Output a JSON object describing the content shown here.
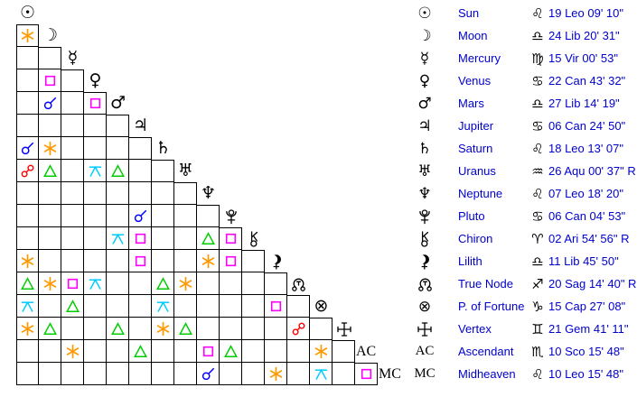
{
  "page": {
    "description": "Astrological aspect grid (aspectarian) with planet position table"
  },
  "colors": {
    "background": "#ffffff",
    "grid_line": "#000000",
    "glyph": "#000000",
    "text_blue": "#0000cc"
  },
  "aspect_types": {
    "conjunction": {
      "label": "conjunction",
      "color": "#0000ff"
    },
    "opposition": {
      "label": "opposition",
      "color": "#ff0000"
    },
    "trine": {
      "label": "trine",
      "color": "#00cc00"
    },
    "square": {
      "label": "square",
      "color": "#ff00ff"
    },
    "sextile": {
      "label": "sextile",
      "color": "#ff9900"
    },
    "quincunx": {
      "label": "quincunx",
      "color": "#00ccff"
    }
  },
  "planets": [
    {
      "name": "Sun",
      "icon": "sun-icon",
      "sign_icon": "leo-icon",
      "position": "19 Leo 09' 10\""
    },
    {
      "name": "Moon",
      "icon": "moon-icon",
      "sign_icon": "libra-icon",
      "position": "24 Lib 20' 31\""
    },
    {
      "name": "Mercury",
      "icon": "mercury-icon",
      "sign_icon": "virgo-icon",
      "position": "15 Vir 00' 53\""
    },
    {
      "name": "Venus",
      "icon": "venus-icon",
      "sign_icon": "cancer-icon",
      "position": "22 Can 43' 32\""
    },
    {
      "name": "Mars",
      "icon": "mars-icon",
      "sign_icon": "libra-icon",
      "position": "27 Lib 14' 19\""
    },
    {
      "name": "Jupiter",
      "icon": "jupiter-icon",
      "sign_icon": "cancer-icon",
      "position": "06 Can 24' 50\""
    },
    {
      "name": "Saturn",
      "icon": "saturn-icon",
      "sign_icon": "leo-icon",
      "position": "18 Leo 13' 07\""
    },
    {
      "name": "Uranus",
      "icon": "uranus-icon",
      "sign_icon": "aquarius-icon",
      "position": "26 Aqu 00' 37\" R"
    },
    {
      "name": "Neptune",
      "icon": "neptune-icon",
      "sign_icon": "leo-icon",
      "position": "07 Leo 18' 20\""
    },
    {
      "name": "Pluto",
      "icon": "pluto-icon",
      "sign_icon": "cancer-icon",
      "position": "06 Can 04' 53\""
    },
    {
      "name": "Chiron",
      "icon": "chiron-icon",
      "sign_icon": "aries-icon",
      "position": "02 Ari 54' 56\" R"
    },
    {
      "name": "Lilith",
      "icon": "lilith-icon",
      "sign_icon": "libra-icon",
      "position": "11 Lib 45' 50\""
    },
    {
      "name": "True Node",
      "icon": "true-node-icon",
      "sign_icon": "sagittarius-icon",
      "position": "20 Sag 14' 40\" R"
    },
    {
      "name": "P. of Fortune",
      "icon": "part-of-fortune-icon",
      "sign_icon": "capricorn-icon",
      "position": "15 Cap 27' 08\""
    },
    {
      "name": "Vertex",
      "icon": "vertex-icon",
      "sign_icon": "gemini-icon",
      "position": "21 Gem 41' 11\""
    },
    {
      "name": "Ascendant",
      "icon": "ascendant-icon",
      "sign_icon": "scorpio-icon",
      "position": "10 Sco 15' 48\"",
      "short": "AC"
    },
    {
      "name": "Midheaven",
      "icon": "midheaven-icon",
      "sign_icon": "leo-icon",
      "position": "10 Leo 15' 48\"",
      "short": "MC"
    }
  ],
  "aspects": [
    {
      "row": "Moon",
      "col": "Sun",
      "type": "sextile"
    },
    {
      "row": "Venus",
      "col": "Moon",
      "type": "square"
    },
    {
      "row": "Mars",
      "col": "Moon",
      "type": "conjunction"
    },
    {
      "row": "Mars",
      "col": "Venus",
      "type": "square"
    },
    {
      "row": "Saturn",
      "col": "Sun",
      "type": "conjunction"
    },
    {
      "row": "Saturn",
      "col": "Moon",
      "type": "sextile"
    },
    {
      "row": "Uranus",
      "col": "Sun",
      "type": "opposition"
    },
    {
      "row": "Uranus",
      "col": "Moon",
      "type": "trine"
    },
    {
      "row": "Uranus",
      "col": "Venus",
      "type": "quincunx"
    },
    {
      "row": "Uranus",
      "col": "Mars",
      "type": "trine"
    },
    {
      "row": "Pluto",
      "col": "Jupiter",
      "type": "conjunction"
    },
    {
      "row": "Chiron",
      "col": "Mars",
      "type": "quincunx"
    },
    {
      "row": "Chiron",
      "col": "Jupiter",
      "type": "square"
    },
    {
      "row": "Chiron",
      "col": "Neptune",
      "type": "trine"
    },
    {
      "row": "Chiron",
      "col": "Pluto",
      "type": "square"
    },
    {
      "row": "Lilith",
      "col": "Sun",
      "type": "sextile"
    },
    {
      "row": "Lilith",
      "col": "Jupiter",
      "type": "square"
    },
    {
      "row": "Lilith",
      "col": "Neptune",
      "type": "sextile"
    },
    {
      "row": "Lilith",
      "col": "Pluto",
      "type": "square"
    },
    {
      "row": "True Node",
      "col": "Sun",
      "type": "trine"
    },
    {
      "row": "True Node",
      "col": "Moon",
      "type": "sextile"
    },
    {
      "row": "True Node",
      "col": "Mercury",
      "type": "square"
    },
    {
      "row": "True Node",
      "col": "Venus",
      "type": "quincunx"
    },
    {
      "row": "True Node",
      "col": "Saturn",
      "type": "trine"
    },
    {
      "row": "True Node",
      "col": "Uranus",
      "type": "sextile"
    },
    {
      "row": "P. of Fortune",
      "col": "Sun",
      "type": "quincunx"
    },
    {
      "row": "P. of Fortune",
      "col": "Mercury",
      "type": "trine"
    },
    {
      "row": "P. of Fortune",
      "col": "Saturn",
      "type": "quincunx"
    },
    {
      "row": "P. of Fortune",
      "col": "Lilith",
      "type": "square"
    },
    {
      "row": "Vertex",
      "col": "Sun",
      "type": "sextile"
    },
    {
      "row": "Vertex",
      "col": "Moon",
      "type": "trine"
    },
    {
      "row": "Vertex",
      "col": "Mars",
      "type": "trine"
    },
    {
      "row": "Vertex",
      "col": "Saturn",
      "type": "sextile"
    },
    {
      "row": "Vertex",
      "col": "Uranus",
      "type": "trine"
    },
    {
      "row": "Vertex",
      "col": "True Node",
      "type": "opposition"
    },
    {
      "row": "Ascendant",
      "col": "Mercury",
      "type": "sextile"
    },
    {
      "row": "Ascendant",
      "col": "Jupiter",
      "type": "trine"
    },
    {
      "row": "Ascendant",
      "col": "Neptune",
      "type": "square"
    },
    {
      "row": "Ascendant",
      "col": "Pluto",
      "type": "trine"
    },
    {
      "row": "Ascendant",
      "col": "P. of Fortune",
      "type": "sextile"
    },
    {
      "row": "Midheaven",
      "col": "Neptune",
      "type": "conjunction"
    },
    {
      "row": "Midheaven",
      "col": "Lilith",
      "type": "sextile"
    },
    {
      "row": "Midheaven",
      "col": "P. of Fortune",
      "type": "quincunx"
    },
    {
      "row": "Midheaven",
      "col": "Ascendant",
      "type": "square"
    }
  ]
}
